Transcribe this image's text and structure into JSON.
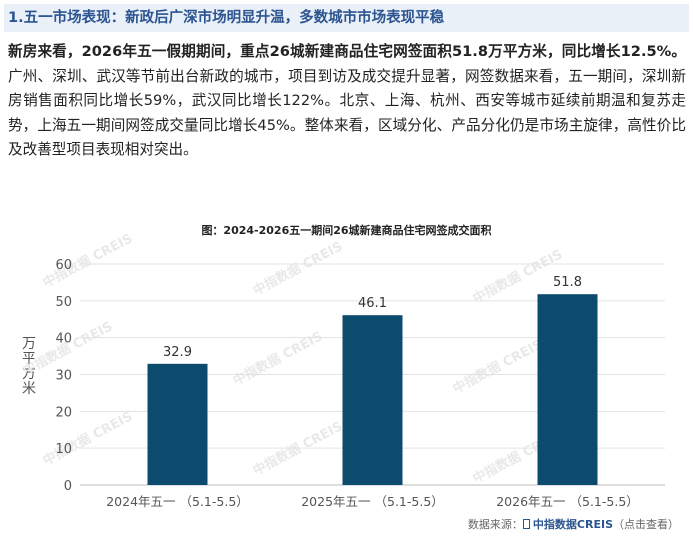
{
  "heading": "1.五一市场表现：新政后广深市场明显升温，多数城市市场表现平稳",
  "paragraph": {
    "lead": "新房来看，2026年五一假期期间，重点26城新建商品住宅网签面积51.8万平方米，同比增长12.5%。",
    "body": "广州、深圳、武汉等节前出台新政的城市，项目到访及成交提升显著，网签数据来看，五一期间，深圳新房销售面积同比增长59%，武汉同比增长122%。北京、上海、杭州、西安等城市延续前期温和复苏走势，上海五一期间网签成交量同比增长45%。整体来看，区域分化、产品分化仍是市场主旋律，高性价比及改善型项目表现相对突出。"
  },
  "chart_data": {
    "type": "bar",
    "title": "图：2024-2026五一期间26城新建商品住宅网签成交面积",
    "categories": [
      "2024年五一 （5.1-5.5）",
      "2025年五一 （5.1-5.5）",
      "2026年五一 （5.1-5.5）"
    ],
    "values": [
      32.9,
      46.1,
      51.8
    ],
    "value_labels": [
      "32.9",
      "46.1",
      "51.8"
    ],
    "ylabel": "万平方米",
    "ylim": [
      0,
      60
    ],
    "yticks": [
      "0",
      "10",
      "20",
      "30",
      "40",
      "50",
      "60"
    ],
    "grid": true,
    "bar_color": "#0c4a6e",
    "watermark": "中指数据 CREIS"
  },
  "source": {
    "label": "数据来源：",
    "brand": "中指数据CREIS",
    "link": "（点击查看）"
  }
}
